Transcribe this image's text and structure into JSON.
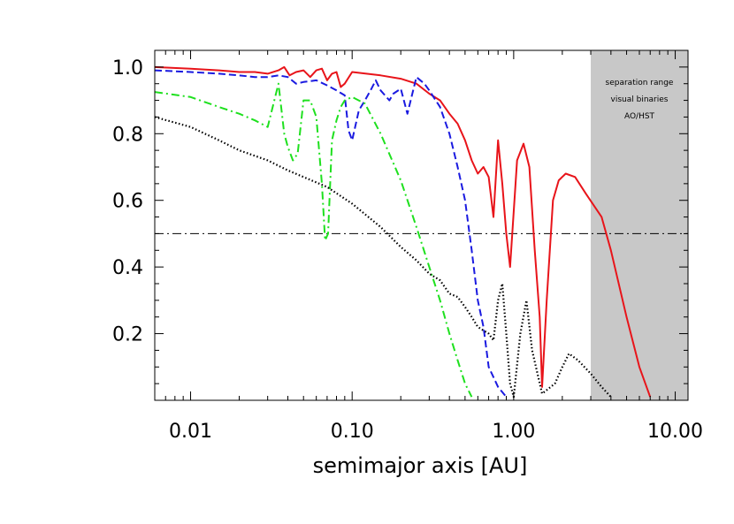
{
  "chart_data": {
    "type": "line",
    "title": "",
    "xlabel": "semimajor axis [AU]",
    "ylabel": "",
    "x_scale": "log",
    "xlim": [
      0.006,
      12
    ],
    "ylim": [
      0.0,
      1.05
    ],
    "x_ticks": [
      {
        "value": 0.01,
        "label": "0.01"
      },
      {
        "value": 0.1,
        "label": "0.10"
      },
      {
        "value": 1,
        "label": "1.00"
      },
      {
        "value": 10,
        "label": "10.00"
      }
    ],
    "y_ticks": [
      {
        "value": 0.2,
        "label": "0.2"
      },
      {
        "value": 0.4,
        "label": "0.4"
      },
      {
        "value": 0.6,
        "label": "0.6"
      },
      {
        "value": 0.8,
        "label": "0.8"
      },
      {
        "value": 1.0,
        "label": "1.0"
      }
    ],
    "grid": false,
    "shaded_region": {
      "x_from": 3.0,
      "x_to": 12,
      "color": "#c8c8c8",
      "text": [
        "separation range",
        "visual binaries",
        "AO/HST"
      ]
    },
    "reference_line": {
      "y": 0.5,
      "style": "dash-dot",
      "color": "#000000"
    },
    "series": [
      {
        "color": "#e8141a",
        "style": "solid",
        "points": [
          [
            0.006,
            1.0
          ],
          [
            0.01,
            0.995
          ],
          [
            0.015,
            0.99
          ],
          [
            0.02,
            0.985
          ],
          [
            0.025,
            0.985
          ],
          [
            0.03,
            0.98
          ],
          [
            0.035,
            0.99
          ],
          [
            0.038,
            1.0
          ],
          [
            0.041,
            0.975
          ],
          [
            0.045,
            0.985
          ],
          [
            0.05,
            0.99
          ],
          [
            0.055,
            0.97
          ],
          [
            0.06,
            0.99
          ],
          [
            0.065,
            0.995
          ],
          [
            0.07,
            0.96
          ],
          [
            0.075,
            0.98
          ],
          [
            0.08,
            0.985
          ],
          [
            0.085,
            0.94
          ],
          [
            0.09,
            0.95
          ],
          [
            0.1,
            0.985
          ],
          [
            0.15,
            0.975
          ],
          [
            0.2,
            0.965
          ],
          [
            0.25,
            0.95
          ],
          [
            0.3,
            0.92
          ],
          [
            0.35,
            0.9
          ],
          [
            0.4,
            0.86
          ],
          [
            0.45,
            0.83
          ],
          [
            0.5,
            0.78
          ],
          [
            0.55,
            0.72
          ],
          [
            0.6,
            0.68
          ],
          [
            0.65,
            0.7
          ],
          [
            0.7,
            0.67
          ],
          [
            0.75,
            0.55
          ],
          [
            0.8,
            0.78
          ],
          [
            0.85,
            0.65
          ],
          [
            0.9,
            0.5
          ],
          [
            0.95,
            0.4
          ],
          [
            1.05,
            0.72
          ],
          [
            1.15,
            0.77
          ],
          [
            1.25,
            0.7
          ],
          [
            1.35,
            0.45
          ],
          [
            1.45,
            0.25
          ],
          [
            1.5,
            0.04
          ],
          [
            1.6,
            0.3
          ],
          [
            1.75,
            0.6
          ],
          [
            1.9,
            0.66
          ],
          [
            2.1,
            0.68
          ],
          [
            2.4,
            0.67
          ],
          [
            2.8,
            0.62
          ],
          [
            3.5,
            0.55
          ],
          [
            4.0,
            0.45
          ],
          [
            5.0,
            0.25
          ],
          [
            6.0,
            0.1
          ],
          [
            7.0,
            0.01
          ]
        ]
      },
      {
        "color": "#1a1ae0",
        "style": "dashed",
        "points": [
          [
            0.006,
            0.99
          ],
          [
            0.01,
            0.985
          ],
          [
            0.015,
            0.98
          ],
          [
            0.02,
            0.975
          ],
          [
            0.025,
            0.97
          ],
          [
            0.03,
            0.97
          ],
          [
            0.035,
            0.975
          ],
          [
            0.04,
            0.97
          ],
          [
            0.045,
            0.95
          ],
          [
            0.05,
            0.955
          ],
          [
            0.06,
            0.96
          ],
          [
            0.07,
            0.945
          ],
          [
            0.08,
            0.93
          ],
          [
            0.09,
            0.915
          ],
          [
            0.095,
            0.81
          ],
          [
            0.1,
            0.78
          ],
          [
            0.11,
            0.87
          ],
          [
            0.12,
            0.9
          ],
          [
            0.13,
            0.93
          ],
          [
            0.14,
            0.96
          ],
          [
            0.15,
            0.93
          ],
          [
            0.17,
            0.9
          ],
          [
            0.18,
            0.92
          ],
          [
            0.2,
            0.935
          ],
          [
            0.22,
            0.86
          ],
          [
            0.25,
            0.97
          ],
          [
            0.28,
            0.95
          ],
          [
            0.3,
            0.93
          ],
          [
            0.35,
            0.88
          ],
          [
            0.4,
            0.8
          ],
          [
            0.45,
            0.7
          ],
          [
            0.5,
            0.6
          ],
          [
            0.55,
            0.45
          ],
          [
            0.6,
            0.3
          ],
          [
            0.65,
            0.22
          ],
          [
            0.7,
            0.1
          ],
          [
            0.8,
            0.04
          ],
          [
            0.9,
            0.01
          ]
        ]
      },
      {
        "color": "#1ee01e",
        "style": "dash-dot",
        "points": [
          [
            0.006,
            0.925
          ],
          [
            0.01,
            0.91
          ],
          [
            0.015,
            0.88
          ],
          [
            0.02,
            0.86
          ],
          [
            0.025,
            0.84
          ],
          [
            0.03,
            0.82
          ],
          [
            0.035,
            0.95
          ],
          [
            0.038,
            0.8
          ],
          [
            0.04,
            0.76
          ],
          [
            0.043,
            0.72
          ],
          [
            0.046,
            0.74
          ],
          [
            0.05,
            0.9
          ],
          [
            0.055,
            0.9
          ],
          [
            0.06,
            0.85
          ],
          [
            0.065,
            0.65
          ],
          [
            0.068,
            0.48
          ],
          [
            0.071,
            0.5
          ],
          [
            0.075,
            0.78
          ],
          [
            0.08,
            0.84
          ],
          [
            0.085,
            0.88
          ],
          [
            0.09,
            0.9
          ],
          [
            0.1,
            0.91
          ],
          [
            0.12,
            0.89
          ],
          [
            0.15,
            0.8
          ],
          [
            0.2,
            0.66
          ],
          [
            0.25,
            0.52
          ],
          [
            0.3,
            0.4
          ],
          [
            0.35,
            0.3
          ],
          [
            0.4,
            0.2
          ],
          [
            0.45,
            0.12
          ],
          [
            0.5,
            0.05
          ],
          [
            0.55,
            0.01
          ]
        ]
      },
      {
        "color": "#000000",
        "style": "dotted",
        "points": [
          [
            0.006,
            0.85
          ],
          [
            0.01,
            0.82
          ],
          [
            0.015,
            0.78
          ],
          [
            0.02,
            0.75
          ],
          [
            0.03,
            0.72
          ],
          [
            0.04,
            0.69
          ],
          [
            0.05,
            0.67
          ],
          [
            0.07,
            0.64
          ],
          [
            0.1,
            0.59
          ],
          [
            0.15,
            0.52
          ],
          [
            0.2,
            0.46
          ],
          [
            0.25,
            0.42
          ],
          [
            0.3,
            0.38
          ],
          [
            0.35,
            0.36
          ],
          [
            0.4,
            0.32
          ],
          [
            0.45,
            0.31
          ],
          [
            0.5,
            0.28
          ],
          [
            0.55,
            0.25
          ],
          [
            0.6,
            0.22
          ],
          [
            0.7,
            0.2
          ],
          [
            0.75,
            0.18
          ],
          [
            0.8,
            0.3
          ],
          [
            0.85,
            0.35
          ],
          [
            0.9,
            0.2
          ],
          [
            0.95,
            0.05
          ],
          [
            1.0,
            0.01
          ],
          [
            1.1,
            0.2
          ],
          [
            1.2,
            0.3
          ],
          [
            1.3,
            0.15
          ],
          [
            1.5,
            0.02
          ],
          [
            1.8,
            0.05
          ],
          [
            2.0,
            0.1
          ],
          [
            2.2,
            0.14
          ],
          [
            2.5,
            0.12
          ],
          [
            3.0,
            0.08
          ],
          [
            3.5,
            0.04
          ],
          [
            4.0,
            0.01
          ]
        ]
      }
    ]
  }
}
